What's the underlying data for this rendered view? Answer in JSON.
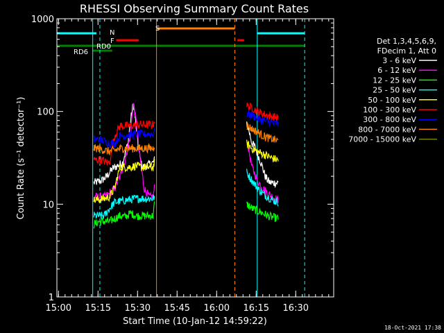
{
  "chart_data": {
    "type": "line",
    "title": "RHESSI Observing Summary Count Rates",
    "xlabel": "Start Time (10-Jan-12 14:59:22)",
    "ylabel": "Count Rate (s⁻¹ detector⁻¹)",
    "yscale": "log",
    "ylim": [
      1,
      1000
    ],
    "xlim_min": [
      0,
      105
    ],
    "x_ticks": [
      {
        "t": 0.6,
        "label": "15:00"
      },
      {
        "t": 15.6,
        "label": "15:15"
      },
      {
        "t": 30.6,
        "label": "15:30"
      },
      {
        "t": 45.6,
        "label": "15:45"
      },
      {
        "t": 60.6,
        "label": "16:00"
      },
      {
        "t": 75.6,
        "label": "16:15"
      },
      {
        "t": 90.6,
        "label": "16:30"
      }
    ],
    "y_ticks": [
      {
        "v": 1,
        "label": "1"
      },
      {
        "v": 10,
        "label": "10"
      },
      {
        "v": 100,
        "label": "100"
      },
      {
        "v": 1000,
        "label": "1000"
      }
    ],
    "legend": {
      "header": [
        "Det 1,3,4,5,6,9,",
        "FDecim 1, Att 0"
      ],
      "placement": "right"
    },
    "series": [
      {
        "name": "3 - 6 keV",
        "color": "#ffffff",
        "seg1": [
          [
            14,
            17
          ],
          [
            17,
            18
          ],
          [
            19,
            20
          ],
          [
            21,
            24
          ],
          [
            23,
            26
          ],
          [
            25,
            28
          ],
          [
            27,
            45
          ],
          [
            28,
            80
          ],
          [
            29,
            120
          ],
          [
            30,
            70
          ],
          [
            31,
            38
          ],
          [
            32,
            27
          ],
          [
            33,
            25
          ],
          [
            35,
            27
          ],
          [
            36.5,
            28
          ],
          [
            37,
            30
          ]
        ],
        "seg2": [
          [
            72,
            75
          ],
          [
            73,
            60
          ],
          [
            74,
            45
          ],
          [
            75,
            42
          ],
          [
            76,
            35
          ],
          [
            77,
            30
          ],
          [
            78,
            25
          ],
          [
            79,
            20
          ],
          [
            80,
            18
          ],
          [
            81,
            17
          ],
          [
            84,
            17
          ]
        ]
      },
      {
        "name": "6 - 12 keV",
        "color": "#ff00ff",
        "seg1": [
          [
            14,
            12
          ],
          [
            18,
            12
          ],
          [
            20,
            13
          ],
          [
            22,
            15
          ],
          [
            24,
            20
          ],
          [
            26,
            30
          ],
          [
            28,
            55
          ],
          [
            29,
            125
          ],
          [
            30,
            80
          ],
          [
            31,
            40
          ],
          [
            32,
            25
          ],
          [
            33,
            15
          ],
          [
            35,
            12
          ],
          [
            36.5,
            12
          ],
          [
            37,
            15
          ]
        ],
        "seg2": [
          [
            72,
            50
          ],
          [
            73,
            35
          ],
          [
            74,
            25
          ],
          [
            76,
            18
          ],
          [
            78,
            15
          ],
          [
            80,
            13
          ],
          [
            82,
            12
          ],
          [
            84,
            11
          ]
        ]
      },
      {
        "name": "12 - 25 keV",
        "color": "#00ff00",
        "seg1": [
          [
            14,
            6
          ],
          [
            16,
            6.5
          ],
          [
            20,
            6.5
          ],
          [
            22,
            7
          ],
          [
            24,
            7.5
          ],
          [
            26,
            7.3
          ],
          [
            28,
            8
          ],
          [
            30,
            7.5
          ],
          [
            32,
            7.5
          ],
          [
            34,
            7.5
          ],
          [
            36.5,
            7.5
          ],
          [
            37,
            10
          ]
        ],
        "seg2": [
          [
            72,
            10
          ],
          [
            74,
            9
          ],
          [
            76,
            8.5
          ],
          [
            78,
            8
          ],
          [
            80,
            7.5
          ],
          [
            82,
            7.2
          ],
          [
            84,
            7
          ]
        ]
      },
      {
        "name": "25 - 50 keV",
        "color": "#00ffff",
        "seg1": [
          [
            14,
            7.5
          ],
          [
            18,
            7.5
          ],
          [
            20,
            9
          ],
          [
            22,
            10.5
          ],
          [
            26,
            11
          ],
          [
            30,
            11.5
          ],
          [
            34,
            11.5
          ],
          [
            36.5,
            11.5
          ],
          [
            37,
            12
          ]
        ],
        "seg2": [
          [
            72,
            22
          ],
          [
            74,
            18
          ],
          [
            76,
            15
          ],
          [
            78,
            13
          ],
          [
            80,
            12
          ],
          [
            82,
            11
          ],
          [
            84,
            10.5
          ]
        ]
      },
      {
        "name": "50 - 100 keV",
        "color": "#ffff00",
        "seg1": [
          [
            14,
            11
          ],
          [
            18,
            11.5
          ],
          [
            20,
            12
          ],
          [
            22,
            15
          ],
          [
            24,
            25
          ],
          [
            26,
            25
          ],
          [
            28,
            25
          ],
          [
            30,
            26
          ],
          [
            32,
            25
          ],
          [
            34,
            25
          ],
          [
            36.5,
            25
          ],
          [
            37,
            28
          ]
        ],
        "seg2": [
          [
            72,
            45
          ],
          [
            74,
            40
          ],
          [
            76,
            37
          ],
          [
            78,
            35
          ],
          [
            80,
            33
          ],
          [
            82,
            31
          ],
          [
            84,
            30
          ]
        ]
      },
      {
        "name": "100 - 300 keV",
        "color": "#ff0000",
        "seg1": [
          [
            14,
            30
          ],
          [
            17,
            30
          ],
          [
            19,
            28
          ],
          [
            20,
            28
          ],
          [
            22,
            55
          ],
          [
            24,
            70
          ],
          [
            26,
            70
          ],
          [
            28,
            70
          ],
          [
            30,
            72
          ],
          [
            32,
            72
          ],
          [
            34,
            72
          ],
          [
            36.5,
            72
          ],
          [
            37,
            80
          ]
        ],
        "seg2": [
          [
            72,
            115
          ],
          [
            74,
            110
          ],
          [
            76,
            100
          ],
          [
            78,
            95
          ],
          [
            80,
            90
          ],
          [
            82,
            88
          ],
          [
            84,
            85
          ]
        ]
      },
      {
        "name": "300 - 800 keV",
        "color": "#0000ff",
        "seg1": [
          [
            14,
            50
          ],
          [
            16,
            50
          ],
          [
            18,
            48
          ],
          [
            20,
            45
          ],
          [
            22,
            45
          ],
          [
            24,
            55
          ],
          [
            26,
            55
          ],
          [
            28,
            56
          ],
          [
            30,
            57
          ],
          [
            32,
            57
          ],
          [
            34,
            57
          ],
          [
            36.5,
            57
          ],
          [
            37,
            60
          ]
        ],
        "seg2": [
          [
            72,
            95
          ],
          [
            74,
            90
          ],
          [
            76,
            85
          ],
          [
            78,
            80
          ],
          [
            80,
            78
          ],
          [
            82,
            75
          ],
          [
            84,
            73
          ]
        ]
      },
      {
        "name": "800 - 7000 keV",
        "color": "#ff8000",
        "seg1": [
          [
            14,
            40
          ],
          [
            16,
            40
          ],
          [
            18,
            38
          ],
          [
            20,
            37
          ],
          [
            22,
            38
          ],
          [
            24,
            40
          ],
          [
            26,
            40
          ],
          [
            28,
            40
          ],
          [
            30,
            40
          ],
          [
            32,
            40
          ],
          [
            34,
            40
          ],
          [
            36.5,
            40
          ],
          [
            37,
            43
          ]
        ],
        "seg2": [
          [
            72,
            70
          ],
          [
            74,
            65
          ],
          [
            76,
            60
          ],
          [
            78,
            55
          ],
          [
            80,
            52
          ],
          [
            82,
            50
          ],
          [
            84,
            48
          ]
        ]
      },
      {
        "name": "7000 - 15000 keV",
        "color": "#808000",
        "seg1": [],
        "seg2": []
      }
    ],
    "annotations": [
      {
        "label": "N",
        "color": "#00ffff"
      },
      {
        "label": "F",
        "color": "#ff0000"
      },
      {
        "label": "S",
        "color": "#ff8000"
      },
      {
        "label": "RD0",
        "color": "#008000"
      },
      {
        "label": "RD6",
        "color": "#008000"
      }
    ],
    "flag_bars": [
      {
        "name": "night",
        "color": "#00ffff",
        "ranges": [
          [
            0,
            15
          ],
          [
            76,
            94
          ]
        ]
      },
      {
        "name": "flare",
        "color": "#ff0000",
        "ranges": [
          [
            22.5,
            31
          ],
          [
            68.5,
            71
          ]
        ]
      },
      {
        "name": "saa",
        "color": "#ff8000",
        "ranges": [
          [
            37.8,
            67.5
          ]
        ]
      },
      {
        "name": "rd0",
        "color": "#008000",
        "ranges": [
          [
            0,
            94
          ]
        ]
      },
      {
        "name": "rd6",
        "color": "#008000",
        "ranges": [
          [
            13.5,
            21
          ]
        ]
      }
    ],
    "vlines": [
      {
        "t": 13.6,
        "color": "#00ffff",
        "dash": false
      },
      {
        "t": 16.3,
        "color": "#00ffff",
        "dash": true
      },
      {
        "t": 37.8,
        "color": "#ff8000",
        "dash": false
      },
      {
        "t": 67.5,
        "color": "#ff8000",
        "dash": true
      },
      {
        "t": 76.0,
        "color": "#00ffff",
        "dash": false
      },
      {
        "t": 94.0,
        "color": "#00ffff",
        "dash": true
      }
    ]
  },
  "footer": {
    "date": "18-Oct-2021 17:38"
  }
}
